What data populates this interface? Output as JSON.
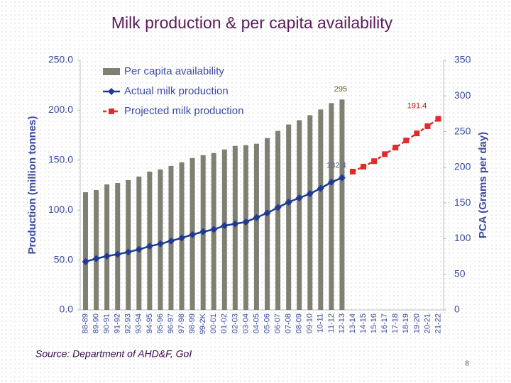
{
  "chart_data": {
    "type": "combo",
    "title": "Milk production & per capita availability",
    "source": "Source: Department of AHD&F, GoI",
    "page_number": "8",
    "ylabel": "Production (million tonnes)",
    "y2label": "PCA (Grams per day)",
    "categories": [
      "88-89",
      "89-90",
      "90-91",
      "91-92",
      "92-93",
      "93-94",
      "94-95",
      "95-96",
      "96-97",
      "97-98",
      "98-99",
      "99-2K",
      "00-01",
      "01-02",
      "02-03",
      "03-04",
      "04-05",
      "05-06",
      "06-07",
      "07-08",
      "08-09",
      "09-10",
      "10-11",
      "11-12",
      "12-13",
      "13-14",
      "14-15",
      "15-16",
      "16-17",
      "17-18",
      "18-19",
      "19-20",
      "20-21",
      "21-22"
    ],
    "ylim": [
      0,
      250
    ],
    "yticks": [
      {
        "value": 0,
        "label": "0.0"
      },
      {
        "value": 50,
        "label": "50.0"
      },
      {
        "value": 100,
        "label": "100.0"
      },
      {
        "value": 150,
        "label": "150.0"
      },
      {
        "value": 200,
        "label": "200.0"
      },
      {
        "value": 250,
        "label": "250.0"
      }
    ],
    "y2lim": [
      0,
      350
    ],
    "y2ticks": [
      0,
      50,
      100,
      150,
      200,
      250,
      300,
      350
    ],
    "series": [
      {
        "name": "Per capita availability",
        "type": "bar",
        "axis": "y2",
        "color": "#7f7f74",
        "values": [
          165,
          168,
          176,
          178,
          182,
          187,
          194,
          197,
          202,
          207,
          213,
          217,
          220,
          225,
          230,
          231,
          233,
          241,
          251,
          260,
          266,
          273,
          281,
          290,
          295,
          null,
          null,
          null,
          null,
          null,
          null,
          null,
          null,
          null
        ],
        "value_labels": [
          null,
          null,
          null,
          null,
          null,
          null,
          null,
          null,
          null,
          null,
          null,
          null,
          null,
          null,
          null,
          null,
          null,
          null,
          null,
          null,
          null,
          null,
          null,
          null,
          "295",
          null,
          null,
          null,
          null,
          null,
          null,
          null,
          null,
          null
        ]
      },
      {
        "name": "Actual milk production",
        "type": "line",
        "color": "#1f3a93",
        "values": [
          48.4,
          51.4,
          53.9,
          55.7,
          58.0,
          60.6,
          63.8,
          66.2,
          69.1,
          72.1,
          75.4,
          78.3,
          80.6,
          84.4,
          86.2,
          88.1,
          92.5,
          97.1,
          102.6,
          107.9,
          112.2,
          116.4,
          121.8,
          127.9,
          132.4,
          null,
          null,
          null,
          null,
          null,
          null,
          null,
          null,
          null
        ],
        "value_labels": [
          null,
          null,
          null,
          null,
          null,
          null,
          null,
          null,
          null,
          null,
          null,
          null,
          null,
          null,
          null,
          null,
          null,
          null,
          null,
          null,
          null,
          null,
          null,
          null,
          "132.4",
          null,
          null,
          null,
          null,
          null,
          null,
          null,
          null,
          null
        ]
      },
      {
        "name": "Projected milk production",
        "type": "line",
        "dashed": true,
        "color": "#e02b2b",
        "values": [
          null,
          null,
          null,
          null,
          null,
          null,
          null,
          null,
          null,
          null,
          null,
          null,
          null,
          null,
          null,
          null,
          null,
          null,
          null,
          null,
          null,
          null,
          null,
          null,
          null,
          138.5,
          143.5,
          149.0,
          156.0,
          162.6,
          169.7,
          176.8,
          184.0,
          191.4
        ],
        "value_labels": [
          null,
          null,
          null,
          null,
          null,
          null,
          null,
          null,
          null,
          null,
          null,
          null,
          null,
          null,
          null,
          null,
          null,
          null,
          null,
          null,
          null,
          null,
          null,
          null,
          null,
          null,
          null,
          null,
          null,
          null,
          null,
          null,
          null,
          "191.4"
        ]
      }
    ]
  }
}
